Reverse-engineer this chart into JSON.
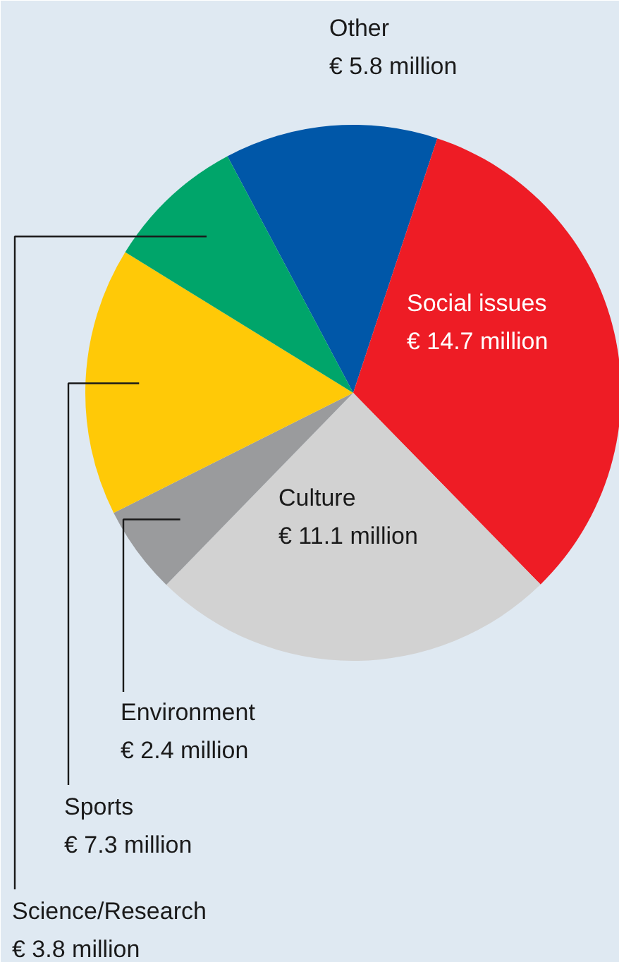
{
  "chart_data": {
    "type": "pie",
    "categories": [
      "Other",
      "Social issues",
      "Culture",
      "Environment",
      "Sports",
      "Science/Research"
    ],
    "values": [
      5.8,
      14.7,
      11.1,
      2.4,
      7.3,
      3.8
    ],
    "value_labels": [
      "€ 5.8 million",
      "€ 14.7 million",
      "€ 11.1 million",
      "€ 2.4 million",
      "€ 7.3 million",
      "€ 3.8 million"
    ],
    "colors": [
      "#0057a8",
      "#ee1c25",
      "#d2d2d2",
      "#9a9b9d",
      "#ffc907",
      "#00a56a"
    ]
  }
}
